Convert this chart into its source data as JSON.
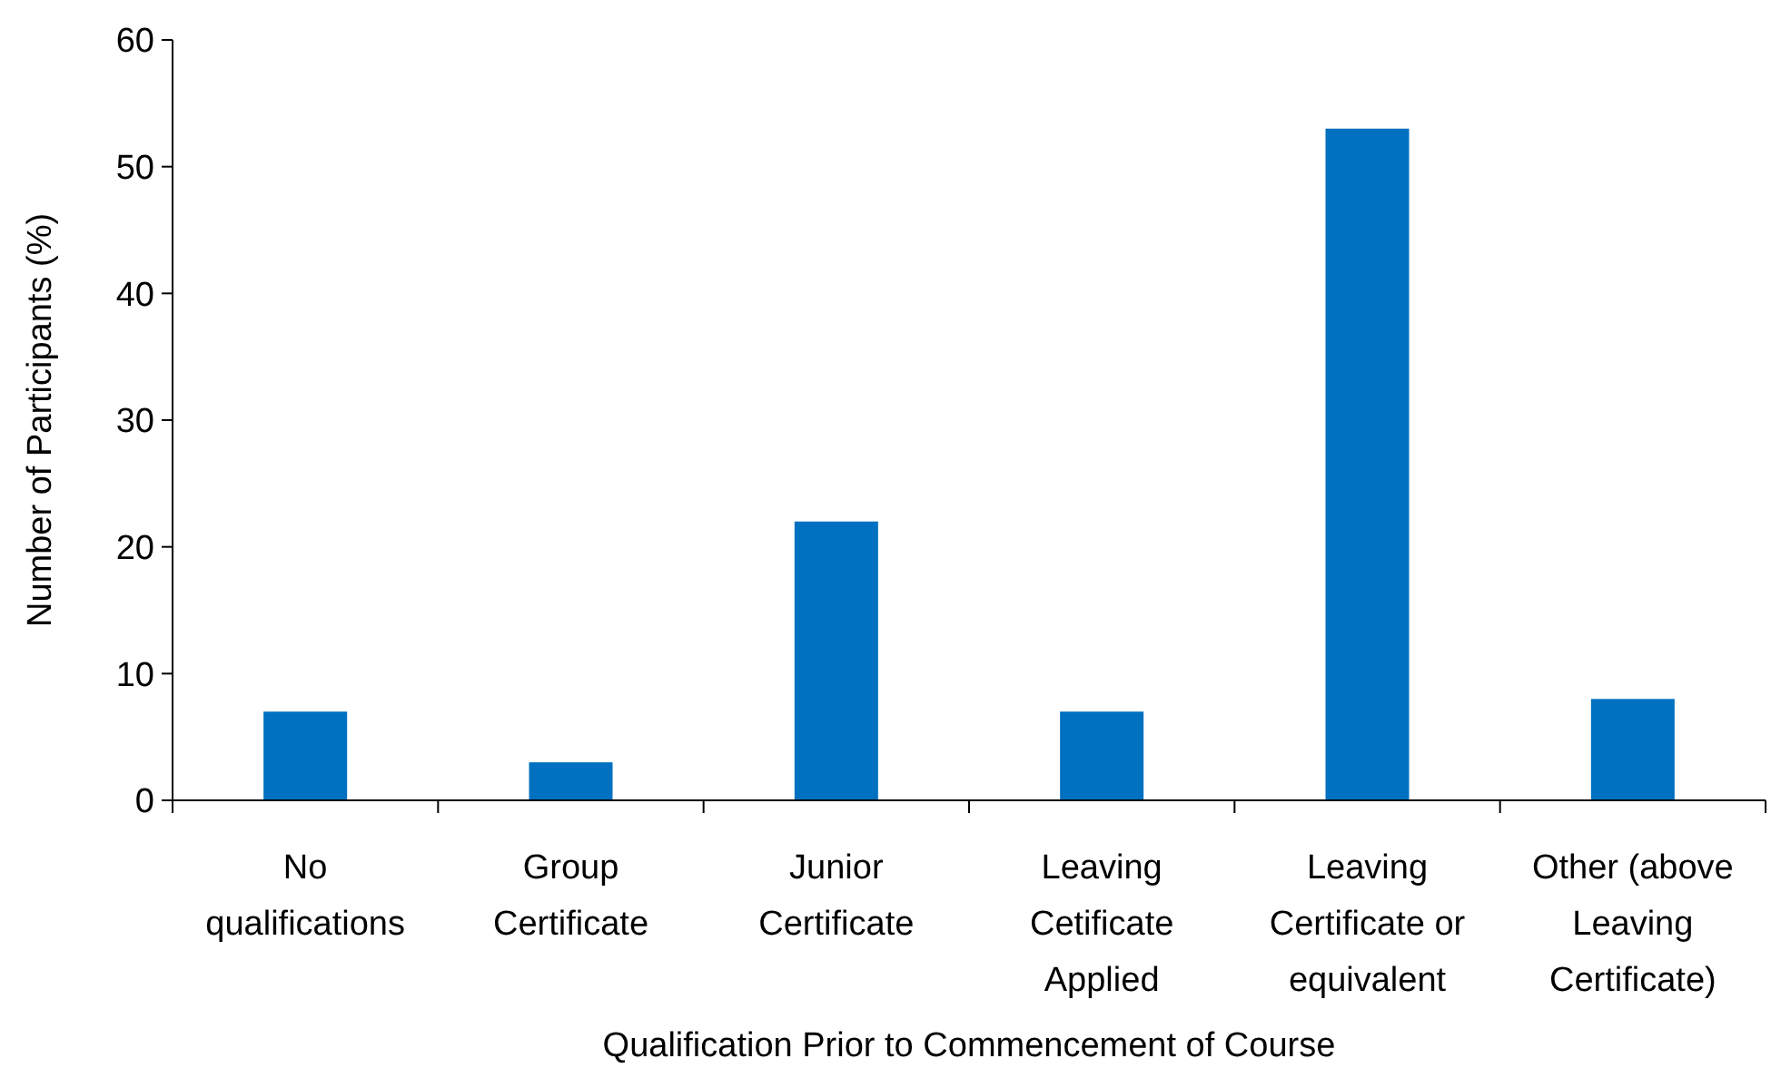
{
  "chart_data": {
    "type": "bar",
    "xlabel": "Qualification Prior to Commencement of Course",
    "ylabel": "Number of Participants (%)",
    "categories": [
      "No qualifications",
      "Group Certificate",
      "Junior Certificate",
      "Leaving Cetificate Applied",
      "Leaving Certificate or equivalent",
      "Other (above Leaving Certificate)"
    ],
    "values": [
      7,
      3,
      22,
      7,
      53,
      8
    ],
    "color": "#0070c0",
    "ylim": [
      0,
      60
    ],
    "yticks": [
      0,
      10,
      20,
      30,
      40,
      50,
      60
    ],
    "grid": false
  }
}
